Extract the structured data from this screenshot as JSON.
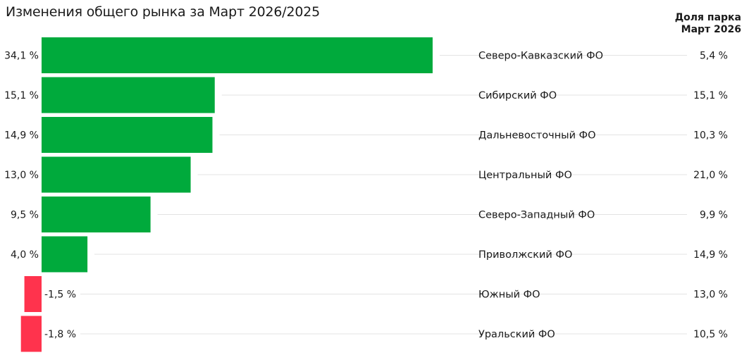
{
  "chart_data": {
    "type": "bar",
    "title": "Изменения общего рынка за Март 2026/2025",
    "share_column_title": [
      "Доля парка",
      "Март 2026"
    ],
    "categories": [
      "Северо-Кавказский ФО",
      "Сибирский ФО",
      "Дальневосточный ФО",
      "Центральный ФО",
      "Северо-Западный ФО",
      "Приволжский ФО",
      "Южный ФО",
      "Уральский ФО"
    ],
    "values": [
      34.1,
      15.1,
      14.9,
      13.0,
      9.5,
      4.0,
      -1.5,
      -1.8
    ],
    "value_labels": [
      "34,1 %",
      "15,1 %",
      "14,9 %",
      "13,0 %",
      "9,5 %",
      "4,0 %",
      "-1,5 %",
      "-1,8 %"
    ],
    "share_values": [
      5.4,
      15.1,
      10.3,
      21.0,
      9.9,
      14.9,
      13.0,
      10.5
    ],
    "share_labels": [
      "5,4 %",
      "15,1 %",
      "10,3 %",
      "21,0 %",
      "9,9 %",
      "14,9 %",
      "13,0 %",
      "10,5 %"
    ],
    "orientation": "horizontal",
    "colors": {
      "positive": "#00aa3c",
      "negative": "#ff334d",
      "gridline": "#e3e3e3",
      "text": "#1a1a1a"
    }
  }
}
